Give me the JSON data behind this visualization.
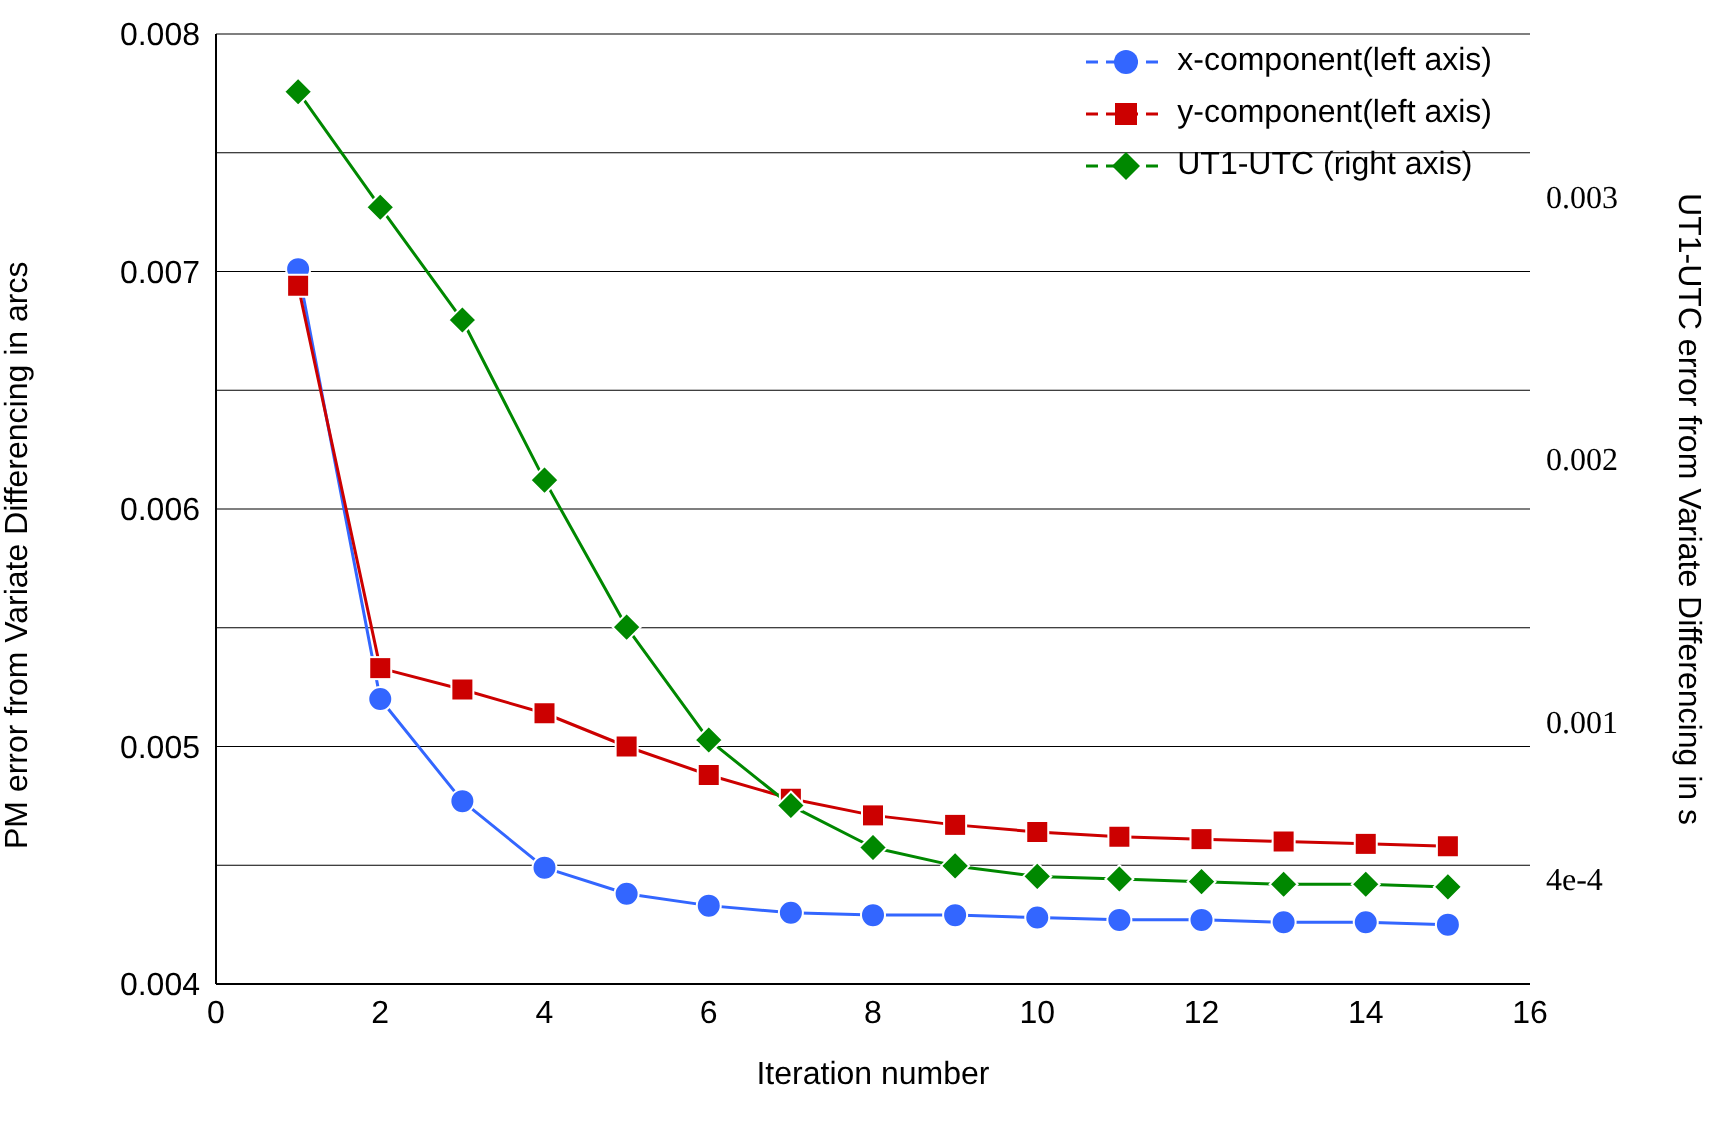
{
  "chart_data": {
    "type": "line",
    "xlabel": "Iteration number",
    "ylabel": "PM error from Variate Differencing in arcs",
    "y2label": "UT1-UTC error from Variate Differencing in s",
    "x": [
      1,
      2,
      3,
      4,
      5,
      6,
      7,
      8,
      9,
      10,
      11,
      12,
      13,
      14,
      15
    ],
    "series": [
      {
        "name": "x-component(left axis)",
        "color": "#3366ff",
        "marker": "circle",
        "values": [
          0.00701,
          0.0052,
          0.00477,
          0.00449,
          0.00438,
          0.00433,
          0.0043,
          0.00429,
          0.00429,
          0.00428,
          0.00427,
          0.00427,
          0.00426,
          0.00426,
          0.00425
        ]
      },
      {
        "name": "y-component(left axis)",
        "color": "#cc0000",
        "marker": "square",
        "values": [
          0.00694,
          0.00533,
          0.00524,
          0.00514,
          0.005,
          0.00488,
          0.00478,
          0.00471,
          0.00467,
          0.00464,
          0.00462,
          0.00461,
          0.0046,
          0.00459,
          0.00458
        ]
      },
      {
        "name": "UT1-UTC (right axis)",
        "color": "#008800",
        "marker": "diamond",
        "axis": "y2",
        "values": [
          0.0034,
          0.00296,
          0.00253,
          0.00192,
          0.00136,
          0.00093,
          0.00068,
          0.00052,
          0.00045,
          0.00041,
          0.0004,
          0.00039,
          0.00038,
          0.00038,
          0.00037
        ]
      }
    ],
    "xlim": [
      0,
      16
    ],
    "xticks": [
      0,
      2,
      4,
      6,
      8,
      10,
      12,
      14,
      16
    ],
    "ylim": [
      0.004,
      0.008
    ],
    "yticks": [
      0.004,
      {
        "value": 0.0045,
        "label": null
      },
      0.005,
      {
        "value": 0.0055,
        "label": null
      },
      0.006,
      {
        "value": 0.0065,
        "label": null
      },
      0.007,
      {
        "value": 0.0075,
        "label": null
      },
      0.008
    ],
    "y2lim": [
      0,
      0.00362
    ],
    "y2ticks": [
      {
        "value": 0.0004,
        "label": "4e-4"
      },
      0.001,
      0.002,
      0.003
    ],
    "grid": "y",
    "legend": "top right",
    "line_style": "solid"
  }
}
